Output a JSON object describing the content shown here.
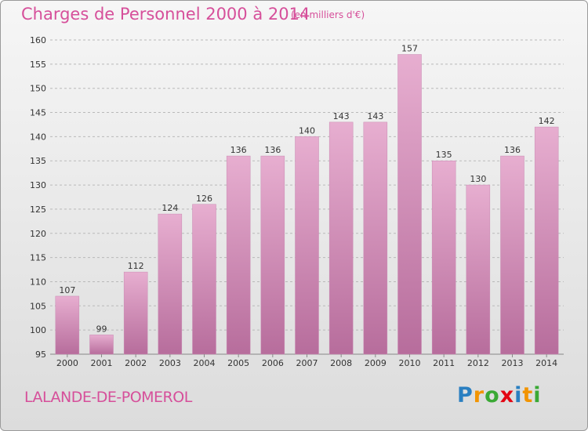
{
  "header": {
    "title": "Charges de Personnel 2000 à 2014",
    "subtitle": "(en milliers d'€)"
  },
  "footer": {
    "commune": "LALANDE-DE-POMEROL",
    "logo_letters": [
      "P",
      "r",
      "o",
      "x",
      "i",
      "t",
      "i"
    ],
    "logo_colors": [
      "#2a7fc1",
      "#f29400",
      "#3aa935",
      "#e30613",
      "#2a7fc1",
      "#f29400",
      "#3aa935"
    ]
  },
  "colors": {
    "bar": "#cf7fb0",
    "bar_light": "#e7aed0",
    "bar_dark": "#b76d9c",
    "title": "#d64f9a",
    "grid": "#b9b9b9"
  },
  "chart_data": {
    "type": "bar",
    "categories": [
      "2000",
      "2001",
      "2002",
      "2003",
      "2004",
      "2005",
      "2006",
      "2007",
      "2008",
      "2009",
      "2010",
      "2011",
      "2012",
      "2013",
      "2014"
    ],
    "values": [
      107,
      99,
      112,
      124,
      126,
      136,
      136,
      140,
      143,
      143,
      157,
      135,
      130,
      136,
      142
    ],
    "ylim": [
      95,
      160
    ],
    "yticks": [
      95,
      100,
      105,
      110,
      115,
      120,
      125,
      130,
      135,
      140,
      145,
      150,
      155,
      160
    ],
    "grid": true,
    "title": "Charges de Personnel 2000 à 2014",
    "xlabel": "",
    "ylabel": ""
  }
}
